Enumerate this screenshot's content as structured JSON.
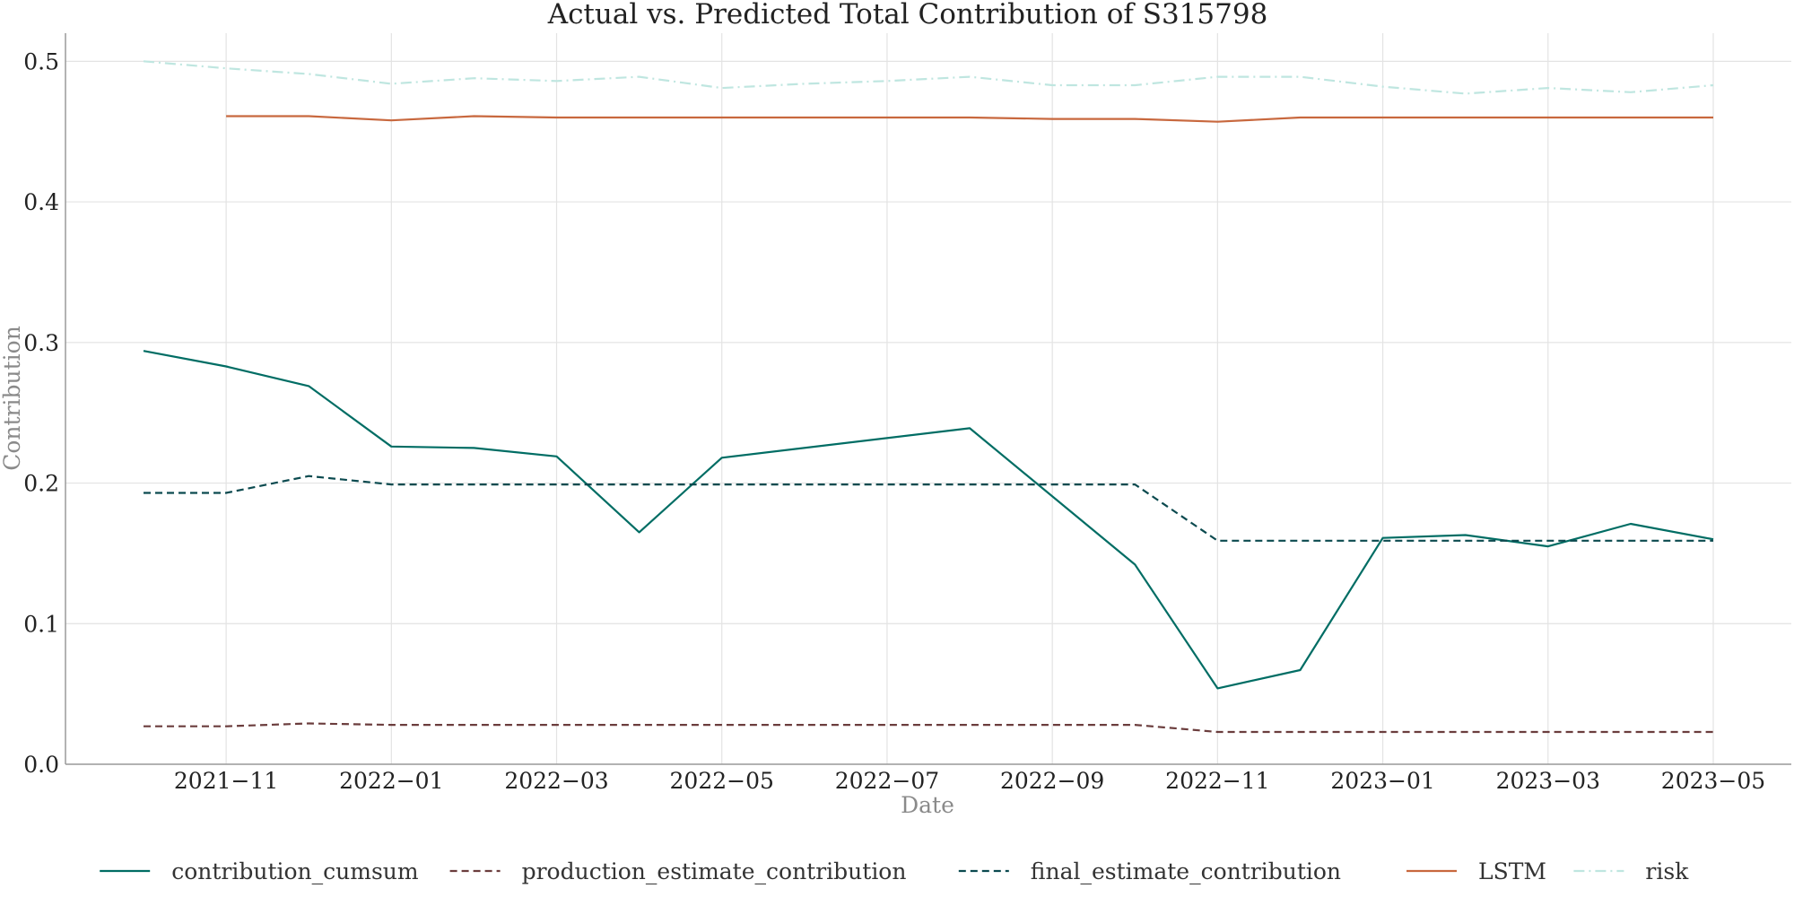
{
  "chart_data": {
    "type": "line",
    "title": "Actual vs. Predicted Total Contribution of S315798",
    "xlabel": "Date",
    "ylabel": "Contribution",
    "x": [
      "2021-10",
      "2021-11",
      "2021-12",
      "2022-01",
      "2022-02",
      "2022-03",
      "2022-04",
      "2022-05",
      "2022-06",
      "2022-07",
      "2022-08",
      "2022-09",
      "2022-10",
      "2022-11",
      "2022-12",
      "2023-01",
      "2023-02",
      "2023-03",
      "2023-04",
      "2023-05"
    ],
    "xlim": [
      "2021-09-01",
      "2023-06-15"
    ],
    "x_ticks": [
      "2021-11",
      "2022-01",
      "2022-03",
      "2022-05",
      "2022-07",
      "2022-09",
      "2022-11",
      "2023-01",
      "2023-03",
      "2023-05"
    ],
    "x_tick_labels": [
      "2021−11",
      "2022−01",
      "2022−03",
      "2022−05",
      "2022−07",
      "2022−09",
      "2022−11",
      "2023−01",
      "2023−03",
      "2023−05"
    ],
    "ylim": [
      0.0,
      0.52
    ],
    "y_ticks": [
      0.0,
      0.1,
      0.2,
      0.3,
      0.4,
      0.5
    ],
    "y_tick_labels": [
      "0.0",
      "0.1",
      "0.2",
      "0.3",
      "0.4",
      "0.5"
    ],
    "grid": true,
    "legend_placement": "bottom-center",
    "series": [
      {
        "name": "contribution_cumsum",
        "color": "#006d64",
        "dash": "solid",
        "values": [
          0.294,
          0.283,
          0.269,
          0.226,
          0.225,
          0.219,
          0.165,
          0.218,
          null,
          null,
          0.239,
          null,
          0.142,
          0.054,
          0.067,
          0.161,
          0.163,
          0.155,
          0.171,
          0.16
        ]
      },
      {
        "name": "production_estimate_contribution",
        "color": "#6b3d3d",
        "dash": "dashed",
        "values": [
          0.027,
          0.027,
          0.029,
          0.028,
          0.028,
          0.028,
          0.028,
          0.028,
          0.028,
          0.028,
          0.028,
          0.028,
          0.028,
          0.023,
          0.023,
          0.023,
          0.023,
          0.023,
          0.023,
          0.023
        ]
      },
      {
        "name": "final_estimate_contribution",
        "color": "#0b4a4f",
        "dash": "dashed",
        "values": [
          0.193,
          0.193,
          0.205,
          0.199,
          0.199,
          0.199,
          0.199,
          0.199,
          0.199,
          0.199,
          0.199,
          0.199,
          0.199,
          0.159,
          0.159,
          0.159,
          0.159,
          0.159,
          0.159,
          0.159
        ]
      },
      {
        "name": "LSTM",
        "color": "#c8683e",
        "dash": "solid",
        "values": [
          null,
          0.461,
          0.461,
          0.458,
          0.461,
          0.46,
          0.46,
          0.46,
          0.46,
          0.46,
          0.46,
          0.459,
          0.459,
          0.457,
          0.46,
          0.46,
          0.46,
          0.46,
          0.46,
          0.46
        ]
      },
      {
        "name": "risk",
        "color": "#bfe6e0",
        "dash": "dashdot",
        "values": [
          0.5,
          0.495,
          0.491,
          0.484,
          0.488,
          0.486,
          0.489,
          0.481,
          0.484,
          0.486,
          0.489,
          0.483,
          0.483,
          0.489,
          0.489,
          0.482,
          0.477,
          0.481,
          0.478,
          0.483
        ]
      }
    ]
  }
}
